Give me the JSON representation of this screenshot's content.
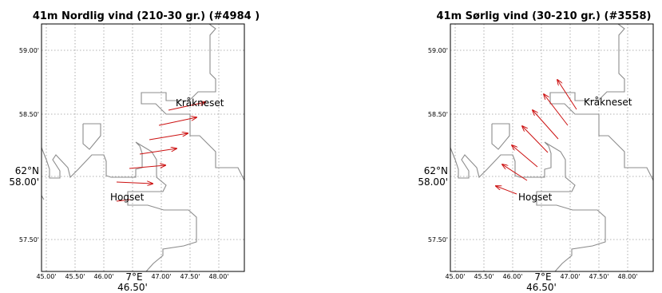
{
  "chart_data": [
    {
      "type": "vector-map",
      "title": "41m Nordlig vind (210-30 gr.) (#4984 )",
      "x_ticks": [
        "45.00'",
        "45.50'",
        "46.00'",
        "46.50'",
        "47.00'",
        "47.50'",
        "48.00'"
      ],
      "x_major": "7°E",
      "y_ticks": [
        "59.00'",
        "58.50'",
        "58.00'",
        "57.50'"
      ],
      "y_major": "62°N",
      "places": [
        "Kråkneset",
        "Hogset"
      ],
      "arrow_color": "#cc1111"
    },
    {
      "type": "vector-map",
      "title": "41m Sørlig vind (30-210 gr.) (#3558)",
      "x_ticks": [
        "45.00'",
        "45.50'",
        "46.00'",
        "46.50'",
        "47.00'",
        "47.50'",
        "48.00'"
      ],
      "x_major": "7°E",
      "y_ticks": [
        "59.00'",
        "58.50'",
        "58.00'",
        "57.50'"
      ],
      "y_major": "62°N",
      "places": [
        "Kråkneset",
        "Hogset"
      ],
      "arrow_color": "#cc1111"
    }
  ]
}
